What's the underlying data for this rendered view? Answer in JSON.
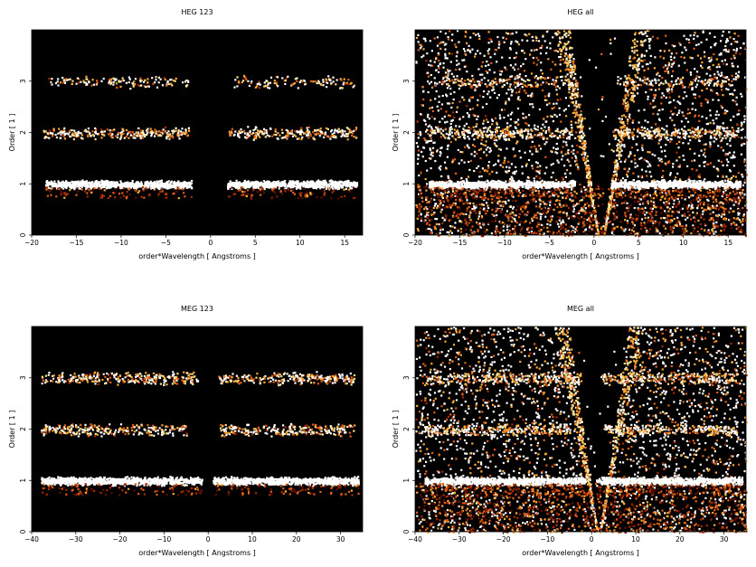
{
  "chart_data": [
    {
      "type": "heatmap",
      "title": "HEG 123",
      "xlabel": "order*Wavelength [ Angstroms ]",
      "ylabel": "Order [ 1 ]",
      "xlim": [
        -20,
        17
      ],
      "ylim": [
        0,
        4
      ],
      "xticks": [
        -20,
        -15,
        -10,
        -5,
        0,
        5,
        10,
        15
      ],
      "yticks": [
        0,
        1,
        2,
        3
      ],
      "bands": [
        {
          "order": 1,
          "ranges": [
            [
              -18.5,
              -2.2
            ],
            [
              1.8,
              16.3
            ]
          ],
          "intensity": "high"
        },
        {
          "order": 2,
          "ranges": [
            [
              -18.8,
              -2.5
            ],
            [
              2.0,
              16.2
            ]
          ],
          "intensity": "medium"
        },
        {
          "order": 3,
          "ranges": [
            [
              -18.5,
              -2.5
            ],
            [
              2.5,
              16.0
            ]
          ],
          "intensity": "low"
        }
      ],
      "background": "none"
    },
    {
      "type": "heatmap",
      "title": "HEG all",
      "xlabel": "order*Wavelength [ Angstroms ]",
      "ylabel": "Order [ 1 ]",
      "xlim": [
        -20,
        17
      ],
      "ylim": [
        0,
        4
      ],
      "xticks": [
        -20,
        -15,
        -10,
        -5,
        0,
        5,
        10,
        15
      ],
      "yticks": [
        0,
        1,
        2,
        3
      ],
      "bands": [
        {
          "order": 1,
          "ranges": [
            [
              -18.5,
              -2.2
            ],
            [
              1.8,
              16.3
            ]
          ],
          "intensity": "high"
        },
        {
          "order": 2,
          "ranges": [
            [
              -18.8,
              -2.5
            ],
            [
              2.0,
              16.2
            ]
          ],
          "intensity": "medium"
        },
        {
          "order": 3,
          "ranges": [
            [
              -18.5,
              -2.5
            ],
            [
              2.5,
              16.0
            ]
          ],
          "intensity": "low"
        }
      ],
      "background": "scatter"
    },
    {
      "type": "heatmap",
      "title": "MEG 123",
      "xlabel": "order*Wavelength [ Angstroms ]",
      "ylabel": "Order [ 1 ]",
      "xlim": [
        -40,
        35
      ],
      "ylim": [
        0,
        4
      ],
      "xticks": [
        -40,
        -30,
        -20,
        -10,
        0,
        10,
        20,
        30
      ],
      "yticks": [
        0,
        1,
        2,
        3
      ],
      "bands": [
        {
          "order": 1,
          "ranges": [
            [
              -38.0,
              -1.5
            ],
            [
              1.0,
              34.0
            ]
          ],
          "intensity": "high"
        },
        {
          "order": 2,
          "ranges": [
            [
              -38.0,
              -5.0
            ],
            [
              2.5,
              33.0
            ]
          ],
          "intensity": "medium"
        },
        {
          "order": 3,
          "ranges": [
            [
              -38.0,
              -2.5
            ],
            [
              2.0,
              33.0
            ]
          ],
          "intensity": "medium"
        }
      ],
      "background": "none"
    },
    {
      "type": "heatmap",
      "title": "MEG all",
      "xlabel": "order*Wavelength [ Angstroms ]",
      "ylabel": "Order [ 1 ]",
      "xlim": [
        -40,
        35
      ],
      "ylim": [
        0,
        4
      ],
      "xticks": [
        -40,
        -30,
        -20,
        -10,
        0,
        10,
        20,
        30
      ],
      "yticks": [
        0,
        1,
        2,
        3
      ],
      "bands": [
        {
          "order": 1,
          "ranges": [
            [
              -38.0,
              -1.5
            ],
            [
              1.0,
              34.0
            ]
          ],
          "intensity": "high"
        },
        {
          "order": 2,
          "ranges": [
            [
              -38.0,
              -5.0
            ],
            [
              2.5,
              33.0
            ]
          ],
          "intensity": "medium"
        },
        {
          "order": 3,
          "ranges": [
            [
              -38.0,
              -2.5
            ],
            [
              2.0,
              33.0
            ]
          ],
          "intensity": "medium"
        }
      ],
      "background": "scatter"
    }
  ],
  "colors": {
    "plot_background": "#000000",
    "colormap": [
      "#5a0f00",
      "#a52a00",
      "#e0601a",
      "#ffaa33",
      "#ffe08a",
      "#ffffff"
    ]
  }
}
